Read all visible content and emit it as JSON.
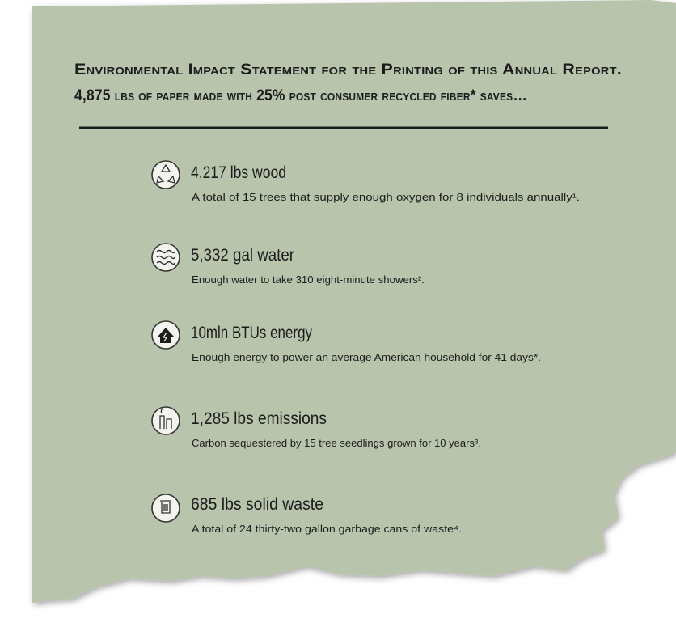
{
  "header": {
    "title": "Environmental Impact Statement for the Printing of this Annual Report.",
    "subtitle": "4,875 lbs of paper made with 25% post consumer recycled fiber* saves…"
  },
  "items": [
    {
      "title": "4,217 lbs wood",
      "description": "A total of 15 trees that supply enough oxygen for 8 individuals annually¹."
    },
    {
      "title": "5,332 gal water",
      "description": "Enough water to take 310 eight-minute showers²."
    },
    {
      "title": "10mln BTUs energy",
      "description": "Enough energy to power an average American household for 41 days*."
    },
    {
      "title": "1,285 lbs emissions",
      "description": "Carbon sequestered by 15 tree seedlings grown for 10 years³."
    },
    {
      "title": "685 lbs solid waste",
      "description": "A total of 24 thirty-two gallon garbage cans of waste⁴."
    }
  ]
}
